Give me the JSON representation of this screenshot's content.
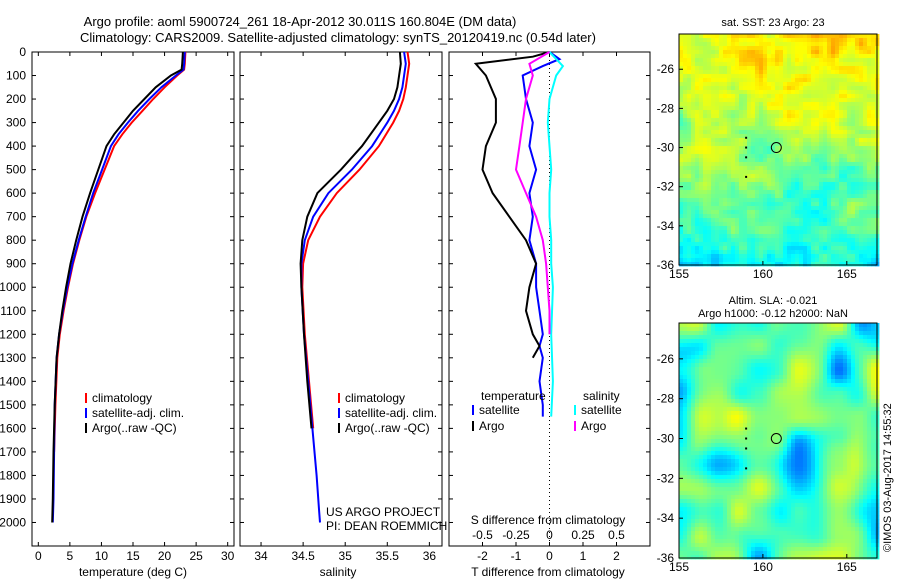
{
  "header": {
    "line1": "Argo profile: aoml 5900724_261 18-Apr-2012 30.011S 160.804E (DM data)",
    "line2": "Climatology: CARS2009. Satellite-adjusted climatology: synTS_20120419.nc (0.54d later)"
  },
  "colors": {
    "climatology": "#ff0000",
    "satellite": "#0000ff",
    "argo": "#000000",
    "sat_salinity": "#00ffff",
    "argo_salinity": "#ff00ff"
  },
  "credit": "©IMOS 03-Aug-2017 14:55:32",
  "project_line1": "US ARGO PROJECT",
  "project_line2": "PI: DEAN ROEMMICH",
  "chart_data": [
    {
      "id": "temperature",
      "type": "line",
      "xlabel": "temperature (deg C)",
      "ylabel": "",
      "xlim": [
        -1,
        31
      ],
      "ylim": [
        2100,
        0
      ],
      "xticks": [
        0,
        5,
        10,
        15,
        20,
        25,
        30
      ],
      "yticks": [
        0,
        100,
        200,
        300,
        400,
        500,
        600,
        700,
        800,
        900,
        1000,
        1100,
        1200,
        1300,
        1400,
        1500,
        1600,
        1700,
        1800,
        1900,
        2000
      ],
      "legend": [
        "climatology",
        "satellite-adj. clim.",
        "Argo(..raw -QC)"
      ],
      "series": [
        {
          "name": "climatology",
          "color": "#ff0000",
          "x": [
            23.3,
            23.2,
            23.1,
            22.0,
            20.0,
            18.2,
            16.5,
            14.8,
            13.3,
            12.0,
            10.5,
            9.0,
            7.6,
            6.5,
            5.5,
            4.7,
            4.0,
            3.4,
            3.0,
            2.7,
            2.5
          ],
          "y": [
            0,
            50,
            75,
            100,
            150,
            200,
            250,
            300,
            350,
            400,
            500,
            600,
            700,
            800,
            900,
            1000,
            1100,
            1200,
            1300,
            1500,
            1700
          ]
        },
        {
          "name": "satellite-adj. clim.",
          "color": "#0000ff",
          "x": [
            23.2,
            23.1,
            23.0,
            21.8,
            19.5,
            17.6,
            15.8,
            14.2,
            12.7,
            11.5,
            10.1,
            8.7,
            7.5,
            6.4,
            5.4,
            4.6,
            3.9,
            3.3,
            2.9,
            2.6,
            2.5,
            2.4,
            2.3
          ],
          "y": [
            0,
            50,
            75,
            100,
            150,
            200,
            250,
            300,
            350,
            400,
            500,
            600,
            700,
            800,
            900,
            1000,
            1100,
            1200,
            1300,
            1500,
            1700,
            1900,
            2000
          ]
        },
        {
          "name": "Argo(..raw -QC)",
          "color": "#000000",
          "x": [
            22.9,
            22.8,
            22.7,
            21.0,
            18.6,
            16.8,
            15.0,
            13.5,
            12.0,
            10.8,
            9.5,
            8.2,
            7.0,
            6.0,
            5.1,
            4.4,
            3.8,
            3.3,
            2.9,
            2.6,
            2.4,
            2.3,
            2.2
          ],
          "y": [
            0,
            50,
            75,
            100,
            150,
            200,
            250,
            300,
            350,
            400,
            500,
            600,
            700,
            800,
            900,
            1000,
            1100,
            1200,
            1300,
            1500,
            1700,
            1900,
            2000
          ]
        }
      ]
    },
    {
      "id": "salinity",
      "type": "line",
      "xlabel": "salinity",
      "ylabel": "",
      "xlim": [
        33.75,
        36.15
      ],
      "ylim": [
        2100,
        0
      ],
      "xticks": [
        34,
        34.5,
        35,
        35.5,
        36
      ],
      "legend": [
        "climatology",
        "satellite-adj. clim.",
        "Argo(..raw -QC)"
      ],
      "series": [
        {
          "name": "climatology",
          "color": "#ff0000",
          "x": [
            35.74,
            35.76,
            35.74,
            35.72,
            35.69,
            35.64,
            35.57,
            35.4,
            35.17,
            34.9,
            34.7,
            34.56,
            34.5,
            34.49,
            34.52,
            34.57,
            34.62
          ],
          "y": [
            0,
            50,
            100,
            150,
            200,
            250,
            300,
            400,
            500,
            600,
            700,
            800,
            900,
            1000,
            1200,
            1400,
            1600
          ]
        },
        {
          "name": "satellite-adj. clim.",
          "color": "#0000ff",
          "x": [
            35.7,
            35.72,
            35.7,
            35.68,
            35.64,
            35.58,
            35.5,
            35.32,
            35.08,
            34.8,
            34.62,
            34.52,
            34.48,
            34.48,
            34.51,
            34.56,
            34.61,
            34.66,
            34.69,
            34.7
          ],
          "y": [
            0,
            50,
            100,
            150,
            200,
            250,
            300,
            400,
            500,
            600,
            700,
            800,
            900,
            1000,
            1200,
            1400,
            1600,
            1800,
            1950,
            2000
          ]
        },
        {
          "name": "Argo(..raw -QC)",
          "color": "#000000",
          "x": [
            35.65,
            35.66,
            35.64,
            35.62,
            35.58,
            35.5,
            35.4,
            35.2,
            34.95,
            34.67,
            34.55,
            34.49,
            34.47,
            34.48,
            34.51,
            34.55,
            34.6
          ],
          "y": [
            0,
            50,
            100,
            150,
            200,
            250,
            300,
            400,
            500,
            600,
            700,
            800,
            900,
            1000,
            1200,
            1400,
            1600
          ]
        }
      ]
    },
    {
      "id": "difference",
      "type": "line",
      "xlabel": "T difference from climatology",
      "xlabel_top": "S difference from climatology",
      "xlim": [
        -3,
        3
      ],
      "ylim": [
        2100,
        0
      ],
      "xticks": [
        -2,
        -1,
        0,
        1,
        2
      ],
      "xticks_top": [
        "-0.5",
        "-0.25",
        "0",
        "0.25",
        "0.5"
      ],
      "legend_temperature_title": "temperature",
      "legend_salinity_title": "salinity",
      "legend_satellite": "satellite",
      "legend_argo": "Argo",
      "series": [
        {
          "name": "temperature satellite",
          "color": "#0000ff",
          "x": [
            0.0,
            0.3,
            -0.2,
            -0.8,
            -0.7,
            -0.5,
            -0.6,
            -0.4,
            -0.6,
            -0.5,
            -0.6,
            -0.4,
            -0.4,
            -0.3,
            -0.2,
            -0.3,
            -0.2,
            -0.3,
            -0.2,
            -0.2
          ],
          "y": [
            0,
            30,
            60,
            100,
            200,
            300,
            400,
            500,
            600,
            700,
            800,
            900,
            1000,
            1100,
            1200,
            1250,
            1300,
            1400,
            1500,
            1550
          ]
        },
        {
          "name": "temperature Argo",
          "color": "#000000",
          "x": [
            0.0,
            -0.5,
            -2.2,
            -1.9,
            -1.6,
            -1.6,
            -1.9,
            -2.0,
            -1.7,
            -1.2,
            -0.7,
            -0.4,
            -0.6,
            -0.7,
            -0.5,
            -0.3,
            -0.5
          ],
          "y": [
            0,
            20,
            50,
            100,
            200,
            300,
            400,
            500,
            600,
            700,
            800,
            900,
            1000,
            1100,
            1200,
            1250,
            1300
          ]
        },
        {
          "name": "salinity satellite",
          "color": "#00ffff",
          "x": [
            0.0,
            0.4,
            0.2,
            0.0,
            -0.05,
            0.0,
            0.05,
            0.0,
            0.0,
            0.05,
            0.05,
            0.1,
            0.05,
            0.1,
            0.05
          ],
          "y": [
            0,
            60,
            100,
            200,
            300,
            400,
            500,
            600,
            700,
            800,
            900,
            1000,
            1200,
            1400,
            1550
          ]
        },
        {
          "name": "salinity Argo",
          "color": "#ff00ff",
          "x": [
            0.0,
            -0.6,
            -0.5,
            -0.7,
            -0.8,
            -0.9,
            -1.0,
            -0.7,
            -0.4,
            -0.2,
            -0.1,
            -0.05,
            0.0,
            0.0
          ],
          "y": [
            0,
            50,
            100,
            200,
            300,
            400,
            500,
            600,
            700,
            800,
            900,
            1000,
            1100,
            1200
          ]
        }
      ]
    },
    {
      "id": "sst_map",
      "type": "heatmap",
      "title": "sat. SST: 23 Argo: 23",
      "xlim": [
        155,
        166.8
      ],
      "ylim": [
        -36,
        -24.2
      ],
      "xticks": [
        155,
        160,
        165
      ],
      "yticks": [
        -26,
        -28,
        -30,
        -32,
        -34,
        -36
      ],
      "argo_position": [
        160.8,
        -30.0
      ]
    },
    {
      "id": "sla_map",
      "type": "heatmap",
      "title_line1": "Altim. SLA: -0.021",
      "title_line2": "Argo h1000: -0.12 h2000: NaN",
      "xlim": [
        155,
        166.8
      ],
      "ylim": [
        -36,
        -24.2
      ],
      "xticks": [
        155,
        160,
        165
      ],
      "yticks": [
        -26,
        -28,
        -30,
        -32,
        -34,
        -36
      ],
      "argo_position": [
        160.8,
        -30.0
      ]
    }
  ]
}
